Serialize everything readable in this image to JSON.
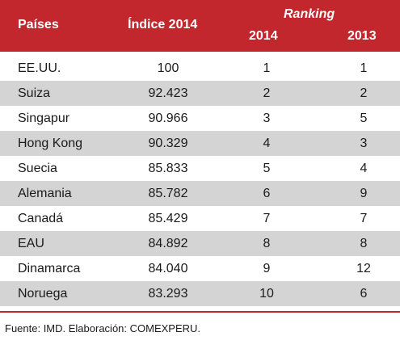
{
  "header": {
    "paises": "Países",
    "indice": "Índice 2014",
    "ranking": "Ranking",
    "year_2014": "2014",
    "year_2013": "2013"
  },
  "rows": [
    {
      "country": "EE.UU.",
      "index": "100",
      "r2014": "1",
      "r2013": "1"
    },
    {
      "country": "Suiza",
      "index": "92.423",
      "r2014": "2",
      "r2013": "2"
    },
    {
      "country": "Singapur",
      "index": "90.966",
      "r2014": "3",
      "r2013": "5"
    },
    {
      "country": "Hong Kong",
      "index": "90.329",
      "r2014": "4",
      "r2013": "3"
    },
    {
      "country": "Suecia",
      "index": "85.833",
      "r2014": "5",
      "r2013": "4"
    },
    {
      "country": "Alemania",
      "index": "85.782",
      "r2014": "6",
      "r2013": "9"
    },
    {
      "country": "Canadá",
      "index": "85.429",
      "r2014": "7",
      "r2013": "7"
    },
    {
      "country": "EAU",
      "index": "84.892",
      "r2014": "8",
      "r2013": "8"
    },
    {
      "country": "Dinamarca",
      "index": "84.040",
      "r2014": "9",
      "r2013": "12"
    },
    {
      "country": "Noruega",
      "index": "83.293",
      "r2014": "10",
      "r2013": "6"
    }
  ],
  "source": "Fuente: IMD. Elaboración: COMEXPERU.",
  "colors": {
    "header_bg": "#c1272d",
    "stripe": "#d4d4d4"
  }
}
